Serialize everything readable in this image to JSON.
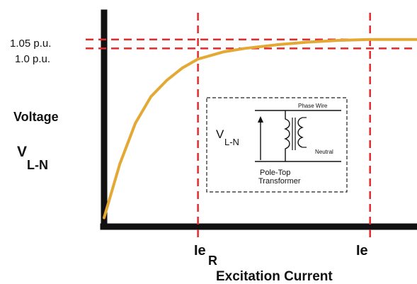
{
  "chart_data": {
    "type": "line",
    "title": "",
    "xlabel": "Excitation Current",
    "ylabel_main": "Voltage",
    "ylabel_sub_main": "V",
    "ylabel_sub_script": "L-N",
    "y_ticks": [
      "1.05 p.u.",
      "1.0 p.u."
    ],
    "x_markers": [
      {
        "main": "Ie",
        "sub": "R"
      },
      {
        "main": "Ie",
        "sub": ""
      }
    ],
    "series": [
      {
        "name": "",
        "color": "#e3a934",
        "x": [
          0.0,
          0.05,
          0.1,
          0.15,
          0.2,
          0.25,
          0.3,
          0.38,
          0.45,
          0.55,
          0.65,
          0.75,
          0.85,
          0.95,
          1.0
        ],
        "y": [
          0.05,
          0.35,
          0.58,
          0.73,
          0.82,
          0.89,
          0.94,
          0.98,
          1.0,
          1.02,
          1.035,
          1.045,
          1.05,
          1.05,
          1.05
        ]
      }
    ],
    "reference_lines": [
      {
        "axis": "y",
        "value": 1.05,
        "color": "#e32b2b"
      },
      {
        "axis": "y",
        "value": 1.0,
        "color": "#e32b2b"
      },
      {
        "axis": "x",
        "value": 0.3,
        "color": "#e32b2b"
      },
      {
        "axis": "x",
        "value": 0.85,
        "color": "#e32b2b"
      }
    ],
    "xlim": [
      0,
      1
    ],
    "ylim": [
      0,
      1.2
    ],
    "grid": false,
    "legend": "none"
  },
  "inset": {
    "left_label_main": "V",
    "left_label_sub": "L-N",
    "top_wire_label": "Phase Wire",
    "bottom_wire_label": "Neutral",
    "caption_line1": "Pole-Top",
    "caption_line2": "Transformer"
  },
  "colors": {
    "axis": "#111111",
    "curve": "#e3a934",
    "reference": "#e32b2b"
  }
}
